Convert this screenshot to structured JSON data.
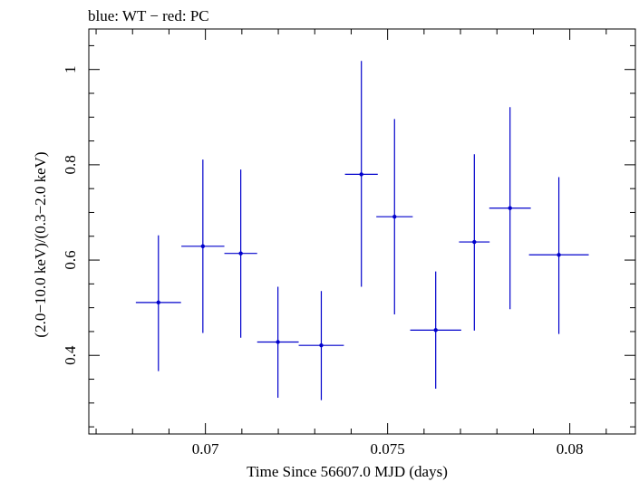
{
  "chart_data": {
    "type": "scatter",
    "title": "blue: WT − red: PC",
    "xlabel": "Time Since 56607.0 MJD (days)",
    "ylabel": "(2.0−10.0 keV)/(0.3−2.0 keV)",
    "xlim": [
      0.0668,
      0.0818
    ],
    "ylim": [
      0.235,
      1.085
    ],
    "x_ticks": [
      0.07,
      0.075,
      0.08
    ],
    "x_tick_labels": [
      "0.07",
      "0.075",
      "0.08"
    ],
    "y_ticks": [
      0.4,
      0.6,
      0.8,
      1.0
    ],
    "y_tick_labels": [
      "0.4",
      "0.6",
      "0.8",
      "1"
    ],
    "x_minor_step": 0.001,
    "y_minor_step": 0.05,
    "grid": false,
    "series": [
      {
        "name": "WT",
        "color": "#0000cc",
        "points": [
          {
            "x": 0.06871,
            "xerr": 0.00062,
            "y": 0.511,
            "ylo": 0.367,
            "yhi": 0.652
          },
          {
            "x": 0.06993,
            "xerr": 0.00059,
            "y": 0.629,
            "ylo": 0.447,
            "yhi": 0.811
          },
          {
            "x": 0.07097,
            "xerr": 0.00045,
            "y": 0.614,
            "ylo": 0.437,
            "yhi": 0.79
          },
          {
            "x": 0.07199,
            "xerr": 0.00057,
            "y": 0.428,
            "ylo": 0.311,
            "yhi": 0.544
          },
          {
            "x": 0.07318,
            "xerr": 0.00062,
            "y": 0.421,
            "ylo": 0.306,
            "yhi": 0.535
          },
          {
            "x": 0.07428,
            "xerr": 0.00045,
            "y": 0.78,
            "ylo": 0.544,
            "yhi": 1.018
          },
          {
            "x": 0.07519,
            "xerr": 0.0005,
            "y": 0.691,
            "ylo": 0.486,
            "yhi": 0.896
          },
          {
            "x": 0.07632,
            "xerr": 0.0007,
            "y": 0.453,
            "ylo": 0.33,
            "yhi": 0.576
          },
          {
            "x": 0.07738,
            "xerr": 0.00042,
            "y": 0.638,
            "ylo": 0.452,
            "yhi": 0.822
          },
          {
            "x": 0.07836,
            "xerr": 0.00057,
            "y": 0.709,
            "ylo": 0.497,
            "yhi": 0.921
          },
          {
            "x": 0.0797,
            "xerr": 0.00082,
            "y": 0.611,
            "ylo": 0.445,
            "yhi": 0.774
          }
        ]
      }
    ]
  }
}
